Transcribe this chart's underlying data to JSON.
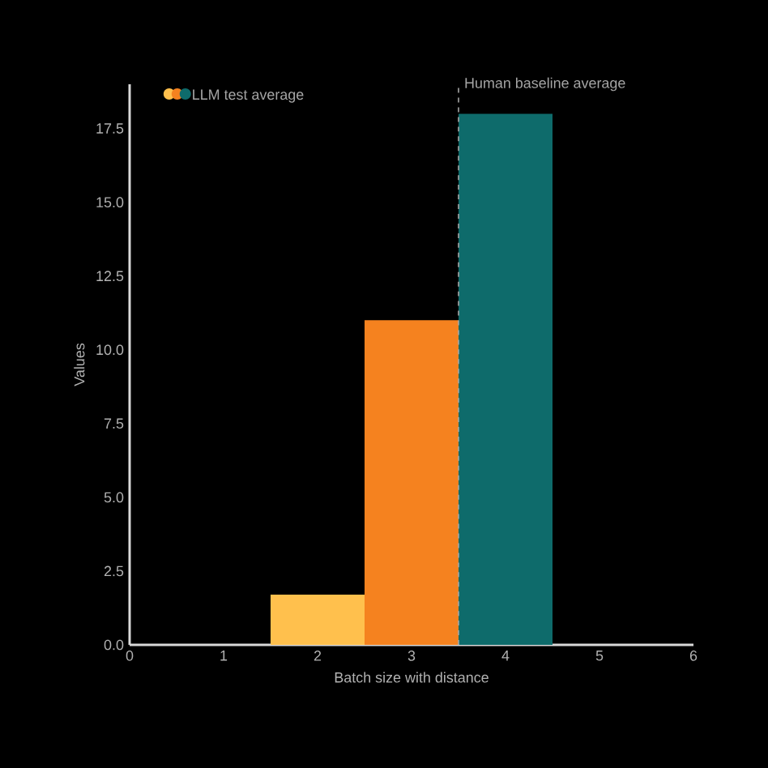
{
  "chart_data": {
    "type": "bar",
    "xlabel": "Batch size with distance",
    "ylabel": "Values",
    "x": [
      2,
      3,
      4
    ],
    "series": [
      {
        "name": "LLM test average",
        "colors": [
          "#ffc04d",
          "#f5821f",
          "#0e6b6b"
        ],
        "values": [
          1.7,
          11.0,
          18.0
        ]
      }
    ],
    "xlim": [
      0,
      6
    ],
    "xticks": [
      0,
      1,
      2,
      3,
      4,
      5,
      6
    ],
    "ylim": [
      0,
      19
    ],
    "yticks": [
      {
        "value": 0,
        "label": "0.0"
      },
      2.5,
      {
        "value": 5,
        "label": "5.0"
      },
      7.5,
      {
        "value": 10,
        "label": "10.0"
      },
      12.5,
      {
        "value": 15,
        "label": "15.0"
      },
      17.5
    ],
    "ref_lines": [
      {
        "axis": "x",
        "value": 3.5,
        "label": "Human baseline average",
        "line_style": "dashed"
      }
    ],
    "legend": "top left",
    "grid": false
  }
}
